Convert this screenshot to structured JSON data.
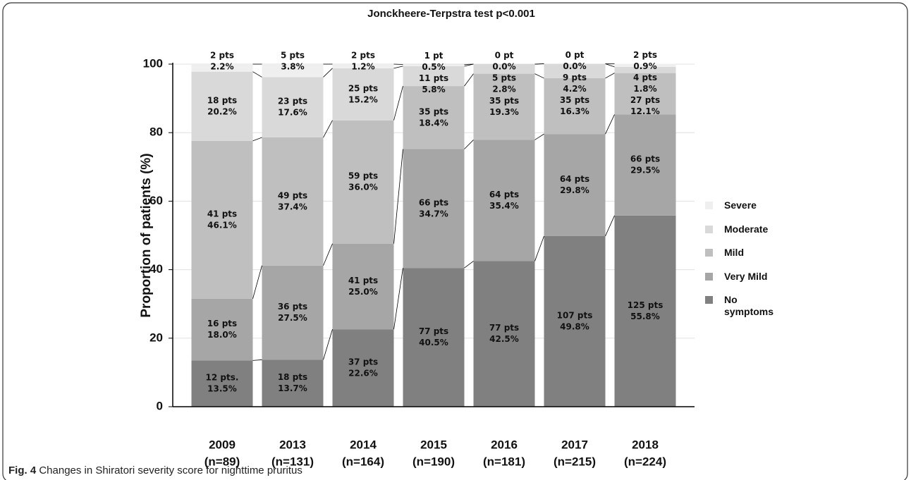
{
  "chart_data": {
    "type": "stacked-bar",
    "title": "Jonckheere-Terpstra test p<0.001",
    "ylabel": "Proportion of patients (%)",
    "categories": [
      "2009",
      "2013",
      "2014",
      "2015",
      "2016",
      "2017",
      "2018"
    ],
    "category_n": [
      "(n=89)",
      "(n=131)",
      "(n=164)",
      "(n=190)",
      "(n=181)",
      "(n=215)",
      "(n=224)"
    ],
    "ylim": [
      0,
      100
    ],
    "yticks": [
      0,
      20,
      40,
      60,
      80,
      100
    ],
    "grid": true,
    "series": [
      {
        "name": "No symptoms",
        "color": "#808080",
        "values": [
          13.5,
          13.7,
          22.6,
          40.5,
          42.5,
          49.8,
          55.8
        ],
        "value_labels": [
          "13.5%",
          "13.7%",
          "22.6%",
          "40.5%",
          "42.5%",
          "49.8%",
          "55.8%"
        ],
        "pts": [
          "12 pts.",
          "18 pts",
          "37 pts",
          "77 pts",
          "77 pts",
          "107 pts",
          "125 pts"
        ]
      },
      {
        "name": "Very Mild",
        "color": "#a6a6a6",
        "values": [
          18.0,
          27.5,
          25.0,
          34.7,
          35.4,
          29.8,
          29.5
        ],
        "value_labels": [
          "18.0%",
          "27.5%",
          "25.0%",
          "34.7%",
          "35.4%",
          "29.8%",
          "29.5%"
        ],
        "pts": [
          "16 pts",
          "36 pts",
          "41 pts",
          "66 pts",
          "64 pts",
          "64 pts",
          "66 pts"
        ]
      },
      {
        "name": "Mild",
        "color": "#bfbfbf",
        "values": [
          46.1,
          37.4,
          36.0,
          18.4,
          19.3,
          16.3,
          12.1
        ],
        "value_labels": [
          "46.1%",
          "37.4%",
          "36.0%",
          "18.4%",
          "19.3%",
          "16.3%",
          "12.1%"
        ],
        "pts": [
          "41 pts",
          "49 pts",
          "59 pts",
          "35 pts",
          "35 pts",
          "35 pts",
          "27 pts"
        ]
      },
      {
        "name": "Moderate",
        "color": "#d9d9d9",
        "values": [
          20.2,
          17.6,
          15.2,
          5.8,
          2.8,
          4.2,
          1.8
        ],
        "value_labels": [
          "20.2%",
          "17.6%",
          "15.2%",
          "5.8%",
          "2.8%",
          "4.2%",
          "1.8%"
        ],
        "pts": [
          "18 pts",
          "23 pts",
          "25 pts",
          "11 pts",
          "5 pts",
          "9 pts",
          "4 pts"
        ]
      },
      {
        "name": "Severe",
        "color": "#efefef",
        "values": [
          2.2,
          3.8,
          1.2,
          0.5,
          0.0,
          0.0,
          0.9
        ],
        "value_labels": [
          "2.2%",
          "3.8%",
          "1.2%",
          "0.5%",
          "0.0%",
          "0.0%",
          "0.9%"
        ],
        "pts": [
          "2 pts",
          "5 pts",
          "2 pts",
          "1 pt",
          "0 pt",
          "0 pt",
          "2 pts"
        ]
      }
    ]
  },
  "caption": {
    "label": "Fig. 4",
    "text": "Changes in Shiratori severity score for nighttime pruritus"
  }
}
